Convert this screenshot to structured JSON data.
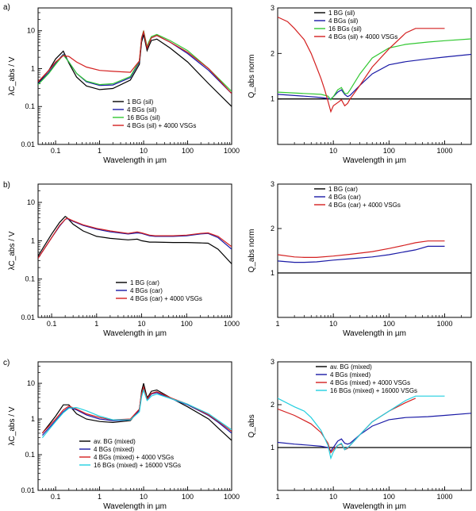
{
  "panel_labels": [
    "a)",
    "b)",
    "c)"
  ],
  "colors": {
    "black": "#000000",
    "blue": "#1a1aa6",
    "green": "#33c833",
    "red": "#d42020",
    "cyan": "#22cfe0"
  },
  "chart_data": [
    {
      "id": "a_left",
      "type": "line",
      "xscale": "log",
      "yscale": "log",
      "xlim": [
        0.04,
        1000
      ],
      "ylim": [
        0.01,
        40
      ],
      "xticks": [
        "0.1",
        "1",
        "10",
        "100",
        "1000"
      ],
      "yticks": [
        "0.01",
        "0.1",
        "1",
        "10"
      ],
      "xlabel": "Wavelength in µm",
      "ylabel": "λC_abs / V",
      "legend_position": "bottom-right",
      "series": [
        {
          "name": "1 BG (sil)",
          "color": "black",
          "x": [
            0.04,
            0.07,
            0.1,
            0.15,
            0.2,
            0.3,
            0.5,
            1,
            2,
            5,
            8,
            9,
            10,
            12,
            13,
            15,
            20,
            40,
            100,
            300,
            1000
          ],
          "y": [
            0.42,
            0.9,
            1.8,
            2.9,
            1.4,
            0.6,
            0.35,
            0.28,
            0.3,
            0.5,
            1.3,
            5,
            8,
            3,
            3.8,
            5.5,
            6,
            3.5,
            1.5,
            0.4,
            0.1
          ]
        },
        {
          "name": "4 BGs (sil)",
          "color": "blue",
          "x": [
            0.04,
            0.07,
            0.1,
            0.15,
            0.2,
            0.3,
            0.5,
            1,
            2,
            5,
            8,
            9,
            10,
            12,
            13,
            15,
            20,
            40,
            100,
            300,
            1000
          ],
          "y": [
            0.4,
            0.8,
            1.4,
            2.4,
            1.5,
            0.75,
            0.45,
            0.36,
            0.37,
            0.58,
            1.5,
            6,
            9.5,
            3.5,
            4.5,
            6.5,
            7.5,
            5,
            2.5,
            0.9,
            0.22
          ]
        },
        {
          "name": "16 BGs (sil)",
          "color": "green",
          "x": [
            0.04,
            0.07,
            0.1,
            0.15,
            0.2,
            0.3,
            0.5,
            1,
            2,
            5,
            8,
            9,
            10,
            12,
            13,
            15,
            20,
            40,
            100,
            300,
            1000
          ],
          "y": [
            0.38,
            0.75,
            1.3,
            2.3,
            1.5,
            0.75,
            0.47,
            0.38,
            0.4,
            0.62,
            1.6,
            6.5,
            10,
            3.8,
            5,
            7,
            8,
            5.5,
            3,
            1,
            0.25
          ]
        },
        {
          "name": "4 BGs (sil) + 4000 VSGs",
          "color": "red",
          "x": [
            0.04,
            0.07,
            0.1,
            0.15,
            0.2,
            0.3,
            0.5,
            1,
            2,
            5,
            8,
            9,
            10,
            12,
            13,
            15,
            20,
            40,
            100,
            300,
            1000
          ],
          "y": [
            0.45,
            0.9,
            1.5,
            2.2,
            2.1,
            1.5,
            1.1,
            0.9,
            0.85,
            0.8,
            1.6,
            6.5,
            9.5,
            3.5,
            4.5,
            6.5,
            7.5,
            5,
            2.7,
            1,
            0.22
          ]
        }
      ]
    },
    {
      "id": "a_right",
      "type": "line",
      "xscale": "log",
      "yscale": "linear",
      "xlim": [
        1,
        3000
      ],
      "ylim": [
        0,
        3
      ],
      "xticks": [
        "10",
        "100",
        "1000"
      ],
      "yticks": [
        "1",
        "2",
        "3"
      ],
      "xlabel": "Wavelength in µm",
      "ylabel": "Q_abs norm",
      "reference_line": 1,
      "legend_position": "top-right",
      "series": [
        {
          "name": "1 BG (sil)",
          "color": "black",
          "x": [
            1,
            3000
          ],
          "y": [
            1,
            1
          ]
        },
        {
          "name": "4 BGs (sil)",
          "color": "blue",
          "x": [
            1,
            3,
            6,
            8,
            9,
            10,
            12,
            14,
            16,
            18,
            20,
            30,
            50,
            100,
            200,
            500,
            1000,
            3000
          ],
          "y": [
            1.1,
            1.06,
            1.03,
            1.01,
            1.0,
            1.05,
            1.15,
            1.2,
            1.1,
            1.05,
            1.08,
            1.3,
            1.55,
            1.75,
            1.82,
            1.88,
            1.92,
            1.98
          ]
        },
        {
          "name": "16 BGs (sil)",
          "color": "green",
          "x": [
            1,
            3,
            6,
            8,
            9,
            10,
            12,
            14,
            16,
            18,
            20,
            30,
            50,
            100,
            200,
            500,
            1000,
            3000
          ],
          "y": [
            1.15,
            1.12,
            1.1,
            1.06,
            0.98,
            1.05,
            1.2,
            1.25,
            1.12,
            1.12,
            1.2,
            1.55,
            1.9,
            2.12,
            2.2,
            2.25,
            2.28,
            2.32
          ]
        },
        {
          "name": "4 BGs (sil) + 4000 VSGs",
          "color": "red",
          "x": [
            1,
            1.5,
            2,
            3,
            4,
            5,
            6,
            7,
            8,
            9,
            10,
            12,
            14,
            16,
            18,
            20,
            30,
            50,
            100,
            200,
            300,
            500,
            1000
          ],
          "y": [
            2.8,
            2.7,
            2.55,
            2.3,
            2.0,
            1.7,
            1.45,
            1.2,
            0.95,
            0.72,
            0.85,
            0.92,
            0.98,
            0.85,
            0.9,
            1.0,
            1.3,
            1.7,
            2.1,
            2.45,
            2.55,
            2.55,
            2.55
          ]
        }
      ]
    },
    {
      "id": "b_left",
      "type": "line",
      "xscale": "log",
      "yscale": "log",
      "xlim": [
        0.05,
        1000
      ],
      "ylim": [
        0.01,
        30
      ],
      "xticks": [
        "0.1",
        "1",
        "10",
        "100",
        "1000"
      ],
      "yticks": [
        "0.01",
        "0.1",
        "1",
        "10"
      ],
      "xlabel": "Wavelength in µm",
      "ylabel": "λC_abs / V",
      "legend_position": "bottom-right",
      "series": [
        {
          "name": "1 BG (car)",
          "color": "black",
          "x": [
            0.05,
            0.1,
            0.15,
            0.2,
            0.22,
            0.3,
            0.5,
            1,
            2,
            5,
            8,
            10,
            15,
            20,
            50,
            100,
            200,
            300,
            500,
            1000
          ],
          "y": [
            0.4,
            1.5,
            3.0,
            4.3,
            4.0,
            2.7,
            1.8,
            1.3,
            1.15,
            1.05,
            1.1,
            1.0,
            0.92,
            0.92,
            0.9,
            0.9,
            0.88,
            0.86,
            0.6,
            0.25
          ]
        },
        {
          "name": "4 BGs (car)",
          "color": "blue",
          "x": [
            0.05,
            0.1,
            0.15,
            0.2,
            0.22,
            0.3,
            0.5,
            1,
            2,
            5,
            8,
            10,
            15,
            20,
            50,
            100,
            200,
            300,
            500,
            1000
          ],
          "y": [
            0.35,
            1.2,
            2.4,
            3.6,
            3.8,
            3.2,
            2.5,
            2.0,
            1.7,
            1.5,
            1.6,
            1.55,
            1.35,
            1.3,
            1.3,
            1.35,
            1.5,
            1.55,
            1.2,
            0.6
          ]
        },
        {
          "name": "4 BGs (car) + 4000 VSGs",
          "color": "red",
          "x": [
            0.05,
            0.1,
            0.15,
            0.2,
            0.22,
            0.3,
            0.5,
            1,
            2,
            5,
            8,
            10,
            15,
            20,
            50,
            100,
            200,
            300,
            500,
            1000
          ],
          "y": [
            0.35,
            1.2,
            2.5,
            3.6,
            3.9,
            3.3,
            2.6,
            2.1,
            1.8,
            1.55,
            1.7,
            1.6,
            1.4,
            1.35,
            1.35,
            1.4,
            1.55,
            1.6,
            1.3,
            0.7
          ]
        }
      ]
    },
    {
      "id": "b_right",
      "type": "line",
      "xscale": "log",
      "yscale": "linear",
      "xlim": [
        1,
        3000
      ],
      "ylim": [
        0,
        3
      ],
      "xticks": [
        "1",
        "10",
        "100",
        "1000"
      ],
      "yticks": [
        "1",
        "2",
        "3"
      ],
      "xlabel": "Wavelength in µm",
      "ylabel": "Q_abs norm",
      "reference_line": 1,
      "legend_position": "top-left",
      "series": [
        {
          "name": "1 BG (car)",
          "color": "black",
          "x": [
            1,
            3000
          ],
          "y": [
            1,
            1
          ]
        },
        {
          "name": "4 BGs (car)",
          "color": "blue",
          "x": [
            1,
            2,
            3,
            5,
            10,
            20,
            50,
            100,
            200,
            300,
            500,
            1000
          ],
          "y": [
            1.27,
            1.24,
            1.24,
            1.25,
            1.29,
            1.32,
            1.36,
            1.41,
            1.48,
            1.52,
            1.6,
            1.6
          ]
        },
        {
          "name": "4 BGs (car) + 4000 VSGs",
          "color": "red",
          "x": [
            1,
            2,
            3,
            5,
            10,
            20,
            50,
            100,
            200,
            300,
            500,
            1000
          ],
          "y": [
            1.41,
            1.36,
            1.35,
            1.35,
            1.38,
            1.42,
            1.48,
            1.55,
            1.63,
            1.68,
            1.72,
            1.72
          ]
        }
      ]
    },
    {
      "id": "c_left",
      "type": "line",
      "xscale": "log",
      "yscale": "log",
      "xlim": [
        0.04,
        1000
      ],
      "ylim": [
        0.01,
        40
      ],
      "xticks": [
        "0.1",
        "1",
        "10",
        "100",
        "1000"
      ],
      "yticks": [
        "0.01",
        "0.1",
        "1",
        "10"
      ],
      "xlabel": "Wavelength in µm",
      "ylabel": "λC_abs / V",
      "legend_position": "bottom-left",
      "series": [
        {
          "name": "av. BG (mixed)",
          "color": "black",
          "x": [
            0.05,
            0.1,
            0.15,
            0.2,
            0.3,
            0.5,
            1,
            2,
            5,
            8,
            9,
            10,
            12,
            13,
            15,
            20,
            40,
            100,
            300,
            500,
            1000
          ],
          "y": [
            0.4,
            1.2,
            2.5,
            2.5,
            1.4,
            1.0,
            0.85,
            0.8,
            0.9,
            1.8,
            6,
            10,
            4,
            4.5,
            6,
            6.5,
            4,
            2.2,
            1,
            0.55,
            0.25
          ]
        },
        {
          "name": "4 BGs (mixed)",
          "color": "blue",
          "x": [
            0.05,
            0.1,
            0.15,
            0.2,
            0.3,
            0.5,
            1,
            2,
            5,
            8,
            9,
            10,
            12,
            13,
            15,
            20,
            40,
            100,
            300,
            500,
            1000
          ],
          "y": [
            0.35,
            0.9,
            1.6,
            2.1,
            1.8,
            1.3,
            1.0,
            0.9,
            0.95,
            1.8,
            5,
            7.5,
            3.5,
            4,
            5,
            5.5,
            3.8,
            2.5,
            1.25,
            0.8,
            0.4
          ]
        },
        {
          "name": "4 BGs (mixed) + 4000 VSGs",
          "color": "red",
          "x": [
            0.05,
            0.1,
            0.15,
            0.2,
            0.3,
            0.5,
            1,
            2,
            5,
            8,
            9,
            10,
            12,
            13,
            15,
            20,
            40,
            100,
            300,
            500,
            1000
          ],
          "y": [
            0.4,
            1.0,
            1.8,
            2.3,
            1.9,
            1.4,
            1.1,
            0.95,
            1.0,
            1.9,
            5.2,
            7.8,
            3.6,
            4.2,
            5.2,
            5.8,
            4,
            2.6,
            1.3,
            0.85,
            0.45
          ]
        },
        {
          "name": "16 BGs (mixed) + 16000 VSGs",
          "color": "cyan",
          "x": [
            0.05,
            0.1,
            0.15,
            0.2,
            0.3,
            0.5,
            1,
            2,
            5,
            8,
            9,
            10,
            12,
            13,
            15,
            20,
            40,
            100,
            300,
            500,
            1000
          ],
          "y": [
            0.3,
            0.85,
            1.5,
            2.0,
            2.1,
            1.7,
            1.2,
            0.95,
            0.95,
            1.6,
            4.2,
            6.5,
            3.3,
            3.6,
            4.4,
            5.0,
            3.8,
            2.6,
            1.4,
            0.9,
            0.5
          ]
        }
      ]
    },
    {
      "id": "c_right",
      "type": "line",
      "xscale": "log",
      "yscale": "linear",
      "xlim": [
        1,
        3000
      ],
      "ylim": [
        0,
        3
      ],
      "xticks": [
        "1",
        "10",
        "100",
        "1000"
      ],
      "yticks": [
        "1",
        "2",
        "3"
      ],
      "xlabel": "Wavelength in µm",
      "ylabel": "Q_abs",
      "reference_line": 1,
      "legend_position": "top-right",
      "series": [
        {
          "name": "av. BG (mixed)",
          "color": "black",
          "x": [
            1,
            3000
          ],
          "y": [
            1,
            1
          ]
        },
        {
          "name": "4 BGs (mixed)",
          "color": "blue",
          "x": [
            1,
            2,
            4,
            6,
            8,
            9,
            10,
            12,
            14,
            16,
            18,
            20,
            30,
            50,
            100,
            200,
            500,
            1000,
            3000
          ],
          "y": [
            1.12,
            1.08,
            1.05,
            1.03,
            1.0,
            0.92,
            1.0,
            1.15,
            1.2,
            1.1,
            1.08,
            1.1,
            1.3,
            1.5,
            1.65,
            1.7,
            1.72,
            1.75,
            1.8
          ]
        },
        {
          "name": "4 BGs (mixed) + 4000 VSGs",
          "color": "red",
          "x": [
            1,
            2,
            4,
            6,
            8,
            9,
            10,
            12,
            14,
            16,
            18,
            20,
            30,
            50,
            100,
            200,
            300
          ],
          "y": [
            1.9,
            1.75,
            1.55,
            1.35,
            1.1,
            0.88,
            0.95,
            1.05,
            1.08,
            0.95,
            0.98,
            1.05,
            1.3,
            1.6,
            1.85,
            2.05,
            2.15
          ]
        },
        {
          "name": "16 BGs (mixed) + 16000 VSGs",
          "color": "cyan",
          "x": [
            1,
            2,
            3,
            4,
            6,
            8,
            9,
            10,
            12,
            14,
            16,
            18,
            20,
            30,
            50,
            100,
            200,
            300,
            500,
            1000
          ],
          "y": [
            2.15,
            1.95,
            1.85,
            1.7,
            1.4,
            1.05,
            0.75,
            0.9,
            1.05,
            1.1,
            0.95,
            1.0,
            1.05,
            1.3,
            1.6,
            1.85,
            2.1,
            2.2,
            2.2,
            2.2
          ]
        }
      ]
    }
  ]
}
